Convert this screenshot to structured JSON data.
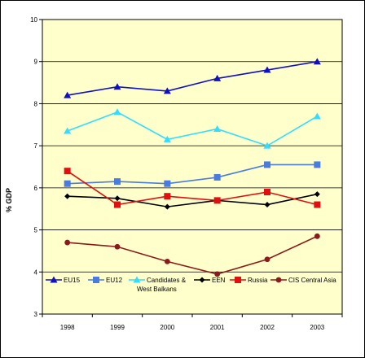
{
  "chart_data": {
    "type": "line",
    "title": "",
    "xlabel": "",
    "ylabel": "% GDP",
    "x": [
      "1998",
      "1999",
      "2000",
      "2001",
      "2002",
      "2003"
    ],
    "ylim": [
      3,
      10
    ],
    "yticks": [
      "3",
      "4",
      "5",
      "6",
      "7",
      "8",
      "9",
      "10"
    ],
    "grid": true,
    "legend_position": "bottom",
    "plot_background": "#FFFFCC",
    "series": [
      {
        "name": "EU15",
        "color": "#1010C0",
        "marker": "triangle",
        "values": [
          8.2,
          8.4,
          8.3,
          8.6,
          8.8,
          9.0
        ]
      },
      {
        "name": "EU12",
        "color": "#4A7BE0",
        "marker": "square",
        "values": [
          6.1,
          6.15,
          6.1,
          6.25,
          6.55,
          6.55
        ]
      },
      {
        "name": "Candidates & West Balkans",
        "label_lines": [
          "Candidates &",
          "West Balkans"
        ],
        "color": "#33DDFF",
        "marker": "triangle",
        "values": [
          7.35,
          7.8,
          7.15,
          7.4,
          7.0,
          7.7
        ]
      },
      {
        "name": "EEN",
        "color": "#000000",
        "marker": "diamond",
        "values": [
          5.8,
          5.75,
          5.55,
          5.7,
          5.6,
          5.85
        ]
      },
      {
        "name": "Russia",
        "color": "#E01010",
        "marker": "square",
        "values": [
          6.4,
          5.6,
          5.8,
          5.7,
          5.9,
          5.6
        ]
      },
      {
        "name": "CIS Central Asia",
        "color": "#8B1A1A",
        "marker": "circle",
        "values": [
          4.7,
          4.6,
          4.25,
          3.95,
          4.3,
          4.85
        ]
      }
    ]
  }
}
